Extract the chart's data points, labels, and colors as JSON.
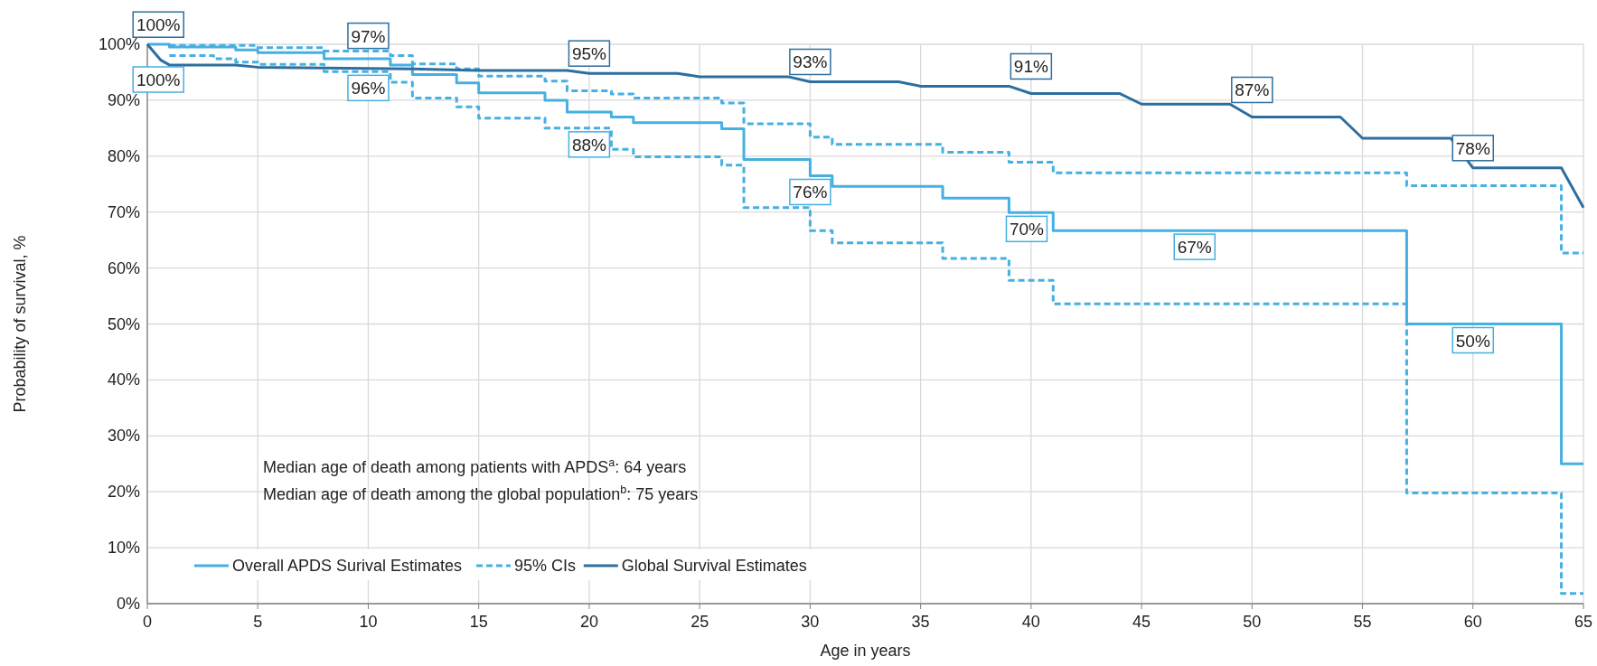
{
  "chart_data": {
    "type": "line",
    "xlabel": "Age in years",
    "ylabel": "Probability of survival, %",
    "xlim": [
      0,
      65
    ],
    "xticks": [
      0,
      5,
      10,
      15,
      20,
      25,
      30,
      35,
      40,
      45,
      50,
      55,
      60,
      65
    ],
    "ylim": [
      0,
      100
    ],
    "yticks": [
      {
        "value": 0,
        "label": "0%"
      },
      {
        "value": 10,
        "label": "10%"
      },
      {
        "value": 20,
        "label": "20%"
      },
      {
        "value": 30,
        "label": "30%"
      },
      {
        "value": 40,
        "label": "40%"
      },
      {
        "value": 50,
        "label": "50%"
      },
      {
        "value": 60,
        "label": "60%"
      },
      {
        "value": 70,
        "label": "70%"
      },
      {
        "value": 80,
        "label": "80%"
      },
      {
        "value": 90,
        "label": "90%"
      },
      {
        "value": 100,
        "label": "100%"
      }
    ],
    "grid": true,
    "legend": "bottom left",
    "series": [
      {
        "name": "Overall APDS Surival Estimates",
        "type": "step",
        "color": "#45b0e1",
        "line_style": "solid",
        "x": [
          0,
          1,
          4,
          5,
          8,
          11,
          12,
          14,
          15,
          18,
          19,
          21,
          22,
          26,
          27,
          30,
          31,
          36,
          39,
          41,
          57,
          64,
          65
        ],
        "values": [
          100,
          99.5,
          99,
          98.5,
          97.4,
          96.3,
          94.6,
          93.1,
          91.3,
          90,
          87.9,
          87,
          86,
          84.9,
          79.4,
          76.5,
          74.6,
          72.5,
          69.9,
          66.7,
          50,
          25,
          25
        ]
      },
      {
        "name": "95% CIs",
        "type": "step",
        "color": "#45b0e1",
        "line_style": "dashed",
        "x": [
          1,
          5,
          8,
          11,
          12,
          14,
          15,
          18,
          19,
          21,
          22,
          26,
          27,
          30,
          31,
          36,
          39,
          41,
          57,
          64,
          65
        ],
        "values": [
          99.8,
          99.4,
          98.8,
          98,
          96.5,
          95.6,
          94.3,
          93.4,
          91.7,
          91.1,
          90.4,
          89.5,
          85.8,
          83.4,
          82.1,
          80.7,
          78.9,
          77,
          74.7,
          62.7,
          62.7
        ]
      },
      {
        "type": "step",
        "color": "#45b0e1",
        "line_style": "dashed",
        "x": [
          1,
          3,
          4,
          5,
          8,
          11,
          12,
          14,
          15,
          18,
          21,
          22,
          26,
          27,
          30,
          31,
          36,
          39,
          41,
          57,
          64,
          65
        ],
        "values": [
          98,
          97.4,
          96.8,
          96.4,
          95.1,
          93.2,
          90.4,
          88.8,
          86.8,
          85,
          81.2,
          79.9,
          78.4,
          70.8,
          66.7,
          64.5,
          61.7,
          57.8,
          53.6,
          19.8,
          1.8,
          1.8
        ]
      },
      {
        "name": "Global Survival Estimates",
        "type": "line",
        "color": "#2e6e9e",
        "line_style": "solid",
        "x": [
          0,
          0.6,
          1,
          4,
          5,
          12,
          15,
          19,
          20,
          24,
          25,
          29,
          30,
          34,
          35,
          39,
          40,
          44,
          45,
          49,
          50,
          54,
          55,
          59,
          60,
          64,
          65
        ],
        "values": [
          100,
          97.2,
          96.3,
          96.3,
          95.9,
          95.6,
          95.3,
          95.3,
          94.8,
          94.8,
          94.2,
          94.2,
          93.3,
          93.3,
          92.5,
          92.5,
          91.2,
          91.2,
          89.3,
          89.3,
          87,
          87,
          83.2,
          83.2,
          77.9,
          77.9,
          70.8
        ]
      }
    ],
    "annotations": [
      {
        "text": "100%",
        "x": 0.5,
        "y": 97.7
      },
      {
        "text": "100%",
        "x": 0.5,
        "y": 100
      },
      {
        "text": "97%",
        "x": 10,
        "y": 95.7
      },
      {
        "text": "96%",
        "x": 10,
        "y": 95.1
      },
      {
        "text": "95%",
        "x": 20,
        "y": 94.8
      },
      {
        "text": "88%",
        "x": 20,
        "y": 85
      },
      {
        "text": "93%",
        "x": 30,
        "y": 93.3
      },
      {
        "text": "76%",
        "x": 30,
        "y": 76.5
      },
      {
        "text": "91%",
        "x": 40,
        "y": 91.2
      },
      {
        "text": "70%",
        "x": 39.8,
        "y": 69.9
      },
      {
        "text": "87%",
        "x": 50,
        "y": 87
      },
      {
        "text": "67%",
        "x": 47.4,
        "y": 66.7
      },
      {
        "text": "78%",
        "x": 60,
        "y": 77.9
      },
      {
        "text": "50%",
        "x": 60,
        "y": 50
      },
      "Median age of death among patients with APDS$^{a}$: 64 years",
      "Median age of death among the global population$^{b}$: 75 years"
    ]
  }
}
